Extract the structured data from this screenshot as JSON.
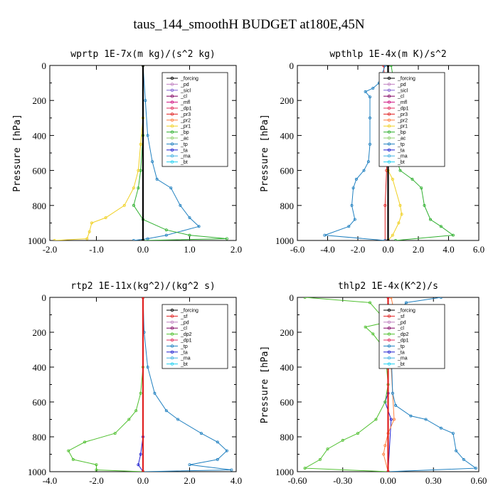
{
  "figure": {
    "title": "taus_144_smoothH  BUDGET at180E,45N"
  },
  "colors": {
    "forcing": "#000000",
    "sf": "#e02020",
    "pd": "#c080c0",
    "sicl": "#8060d0",
    "cl": "#800060",
    "mfl": "#d01080",
    "dp1": "#e03060",
    "dp2": "#50c030",
    "pr3": "#e02020",
    "pr2": "#ff8040",
    "pr1": "#f0d020",
    "bp": "#30b030",
    "ac": "#90d070",
    "tp": "#2080c0",
    "ta": "#2020d0",
    "ma": "#40b0e0",
    "bt": "#20d0f0"
  },
  "chart_data": [
    {
      "type": "line",
      "title": "wprtp  1E-7x(m kg)/(s^2 kg)",
      "ylabel": "Pressure [hPa]",
      "xlim": [
        -2.0,
        2.0
      ],
      "ylim": [
        1000,
        0
      ],
      "xticks": [
        "-2.0",
        "-1.0",
        "0.0",
        "1.0",
        "2.0"
      ],
      "yticks": [
        "0",
        "200",
        "400",
        "600",
        "800",
        "1000"
      ],
      "legend": [
        "_forcing",
        "_pd",
        "_sicl",
        "_cl",
        "_mfl",
        "_dp1",
        "_pr3",
        "_pr2",
        "_pr1",
        "_bp",
        "_ac",
        "_tp",
        "_ta",
        "_ma",
        "_bt"
      ],
      "series": [
        {
          "name": "_forcing",
          "color": "forcing",
          "points": [
            [
              0,
              0
            ],
            [
              0,
              1000
            ]
          ]
        },
        {
          "name": "_pr1",
          "color": "pr1",
          "points": [
            [
              0,
              0
            ],
            [
              0,
              300
            ],
            [
              -0.05,
              450
            ],
            [
              -0.1,
              600
            ],
            [
              -0.2,
              700
            ],
            [
              -0.4,
              800
            ],
            [
              -0.8,
              870
            ],
            [
              -1.1,
              900
            ],
            [
              -1.15,
              950
            ],
            [
              -1.2,
              990
            ],
            [
              -1.9,
              1000
            ]
          ]
        },
        {
          "name": "_bp",
          "color": "bp",
          "points": [
            [
              0,
              0
            ],
            [
              0,
              400
            ],
            [
              -0.05,
              600
            ],
            [
              -0.1,
              700
            ],
            [
              -0.2,
              800
            ],
            [
              0,
              880
            ],
            [
              0.5,
              940
            ],
            [
              1.0,
              970
            ],
            [
              1.8,
              990
            ],
            [
              0,
              1000
            ]
          ]
        },
        {
          "name": "_tp",
          "color": "tp",
          "points": [
            [
              0,
              0
            ],
            [
              0.05,
              200
            ],
            [
              0.1,
              400
            ],
            [
              0.2,
              550
            ],
            [
              0.3,
              650
            ],
            [
              0.6,
              700
            ],
            [
              0.8,
              800
            ],
            [
              1.0,
              870
            ],
            [
              1.2,
              920
            ],
            [
              0.5,
              970
            ],
            [
              0.1,
              990
            ],
            [
              -0.2,
              1000
            ]
          ]
        }
      ]
    },
    {
      "type": "line",
      "title": "wpthlp  1E-4x(m K)/s^2",
      "ylabel": "Pressure [hPa]",
      "xlim": [
        -6.0,
        6.0
      ],
      "ylim": [
        1000,
        0
      ],
      "xticks": [
        "-6.0",
        "-4.0",
        "-2.0",
        "0.0",
        "2.0",
        "4.0",
        "6.0"
      ],
      "yticks": [
        "0",
        "200",
        "400",
        "600",
        "800",
        "1000"
      ],
      "legend": [
        "_forcing",
        "_pd",
        "_sicl",
        "_cl",
        "_mfl",
        "_dp1",
        "_pr3",
        "_pr2",
        "_pr1",
        "_bp",
        "_ac",
        "_tp",
        "_ta",
        "_ma",
        "_bt"
      ],
      "series": [
        {
          "name": "_forcing",
          "color": "forcing",
          "points": [
            [
              0,
              0
            ],
            [
              0,
              1000
            ]
          ]
        },
        {
          "name": "_bp",
          "color": "bp",
          "points": [
            [
              0.2,
              0
            ],
            [
              0.3,
              50
            ],
            [
              1.0,
              100
            ],
            [
              1.8,
              150
            ],
            [
              1.0,
              200
            ],
            [
              0.5,
              250
            ],
            [
              0.4,
              400
            ],
            [
              0.5,
              500
            ],
            [
              0.6,
              550
            ],
            [
              0.8,
              600
            ],
            [
              1.6,
              650
            ],
            [
              2.2,
              700
            ],
            [
              2.4,
              800
            ],
            [
              2.8,
              880
            ],
            [
              3.5,
              920
            ],
            [
              4.3,
              970
            ],
            [
              0.5,
              1000
            ]
          ]
        },
        {
          "name": "_tp",
          "color": "tp",
          "points": [
            [
              -0.2,
              0
            ],
            [
              -0.6,
              100
            ],
            [
              -1.0,
              130
            ],
            [
              -1.5,
              150
            ],
            [
              -1.2,
              180
            ],
            [
              -1.2,
              300
            ],
            [
              -1.2,
              450
            ],
            [
              -1.3,
              550
            ],
            [
              -1.6,
              600
            ],
            [
              -2.1,
              650
            ],
            [
              -2.3,
              700
            ],
            [
              -2.4,
              800
            ],
            [
              -2.2,
              880
            ],
            [
              -2.6,
              920
            ],
            [
              -4.2,
              970
            ],
            [
              -0.2,
              1000
            ]
          ]
        },
        {
          "name": "_pr1",
          "color": "pr1",
          "points": [
            [
              0,
              0
            ],
            [
              0,
              600
            ],
            [
              0.3,
              650
            ],
            [
              0.8,
              800
            ],
            [
              0.9,
              850
            ],
            [
              0.7,
              900
            ],
            [
              0.3,
              970
            ],
            [
              0,
              1000
            ]
          ]
        },
        {
          "name": "_pr3",
          "color": "pr3",
          "points": [
            [
              -0.3,
              0
            ],
            [
              -0.2,
              100
            ],
            [
              -0.1,
              200
            ],
            [
              -0.05,
              400
            ],
            [
              -0.1,
              600
            ],
            [
              -0.2,
              800
            ],
            [
              -0.2,
              1000
            ]
          ]
        }
      ]
    },
    {
      "type": "line",
      "title": "rtp2  1E-11x(kg^2)/(kg^2 s)",
      "ylabel": "",
      "xlim": [
        -4.0,
        4.0
      ],
      "ylim": [
        1000,
        0
      ],
      "xticks": [
        "-4.0",
        "-2.0",
        "0.0",
        "2.0",
        "4.0"
      ],
      "yticks": [
        "0",
        "200",
        "400",
        "600",
        "800",
        "1000"
      ],
      "legend": [
        "_forcing",
        "_sf",
        "_pd",
        "_cl",
        "_dp2",
        "_dp1",
        "_tp",
        "_ta",
        "_ma",
        "_bt"
      ],
      "series": [
        {
          "name": "_forcing",
          "color": "sf",
          "points": [
            [
              0,
              0
            ],
            [
              0,
              1000
            ]
          ]
        },
        {
          "name": "_dp1",
          "color": "dp2",
          "points": [
            [
              0,
              0
            ],
            [
              0,
              400
            ],
            [
              -0.1,
              550
            ],
            [
              -0.3,
              650
            ],
            [
              -0.6,
              700
            ],
            [
              -1.2,
              780
            ],
            [
              -2.5,
              830
            ],
            [
              -3.2,
              880
            ],
            [
              -3.0,
              930
            ],
            [
              -2.0,
              960
            ],
            [
              -2.0,
              990
            ],
            [
              0,
              1000
            ]
          ]
        },
        {
          "name": "_tp",
          "color": "tp",
          "points": [
            [
              0,
              0
            ],
            [
              0.05,
              200
            ],
            [
              0.2,
              400
            ],
            [
              0.5,
              550
            ],
            [
              1.0,
              650
            ],
            [
              1.5,
              700
            ],
            [
              2.5,
              780
            ],
            [
              3.2,
              830
            ],
            [
              3.6,
              880
            ],
            [
              3.2,
              930
            ],
            [
              2.0,
              960
            ],
            [
              3.8,
              990
            ],
            [
              0,
              1000
            ]
          ]
        },
        {
          "name": "_ta",
          "color": "ta",
          "points": [
            [
              0,
              0
            ],
            [
              0,
              800
            ],
            [
              -0.1,
              900
            ],
            [
              -0.2,
              960
            ],
            [
              0,
              1000
            ]
          ]
        }
      ]
    },
    {
      "type": "line",
      "title": "thlp2  1E-4x(K^2)/s",
      "ylabel": "Pressure [hPa]",
      "xlim": [
        -0.6,
        0.6
      ],
      "ylim": [
        1000,
        0
      ],
      "xticks": [
        "-0.60",
        "-0.30",
        "0.00",
        "0.30",
        "0.60"
      ],
      "yticks": [
        "0",
        "200",
        "400",
        "600",
        "800",
        "1000"
      ],
      "legend": [
        "_forcing",
        "_sf",
        "_pd",
        "_cl",
        "_dp2",
        "_dp1",
        "_tp",
        "_ta",
        "_ma",
        "_bt"
      ],
      "series": [
        {
          "name": "_forcing",
          "color": "sf",
          "points": [
            [
              0,
              0
            ],
            [
              0,
              1000
            ]
          ]
        },
        {
          "name": "_dp1",
          "color": "dp2",
          "points": [
            [
              -0.55,
              0
            ],
            [
              -0.12,
              30
            ],
            [
              -0.05,
              100
            ],
            [
              -0.05,
              150
            ],
            [
              -0.15,
              170
            ],
            [
              -0.1,
              210
            ],
            [
              -0.02,
              300
            ],
            [
              0,
              500
            ],
            [
              -0.02,
              600
            ],
            [
              -0.08,
              700
            ],
            [
              -0.2,
              780
            ],
            [
              -0.3,
              820
            ],
            [
              -0.4,
              870
            ],
            [
              -0.45,
              930
            ],
            [
              -0.55,
              980
            ],
            [
              0,
              1000
            ]
          ]
        },
        {
          "name": "_tp",
          "color": "tp",
          "points": [
            [
              0.35,
              0
            ],
            [
              0.12,
              30
            ],
            [
              0.05,
              100
            ],
            [
              0.02,
              300
            ],
            [
              0.03,
              550
            ],
            [
              0.05,
              620
            ],
            [
              0.15,
              680
            ],
            [
              0.25,
              700
            ],
            [
              0.35,
              750
            ],
            [
              0.43,
              780
            ],
            [
              0.45,
              880
            ],
            [
              0.5,
              930
            ],
            [
              0.58,
              980
            ],
            [
              0,
              1000
            ]
          ]
        },
        {
          "name": "_pd",
          "color": "pr2",
          "points": [
            [
              0.02,
              0
            ],
            [
              0.05,
              120
            ],
            [
              0.08,
              170
            ],
            [
              0.05,
              220
            ],
            [
              0.02,
              400
            ],
            [
              0.04,
              700
            ],
            [
              0,
              780
            ],
            [
              -0.02,
              850
            ],
            [
              -0.03,
              900
            ],
            [
              0,
              1000
            ]
          ]
        },
        {
          "name": "_ta",
          "color": "ta",
          "points": [
            [
              0,
              0
            ],
            [
              0,
              550
            ],
            [
              -0.02,
              600
            ],
            [
              0.02,
              700
            ],
            [
              0,
              1000
            ]
          ]
        }
      ]
    }
  ]
}
